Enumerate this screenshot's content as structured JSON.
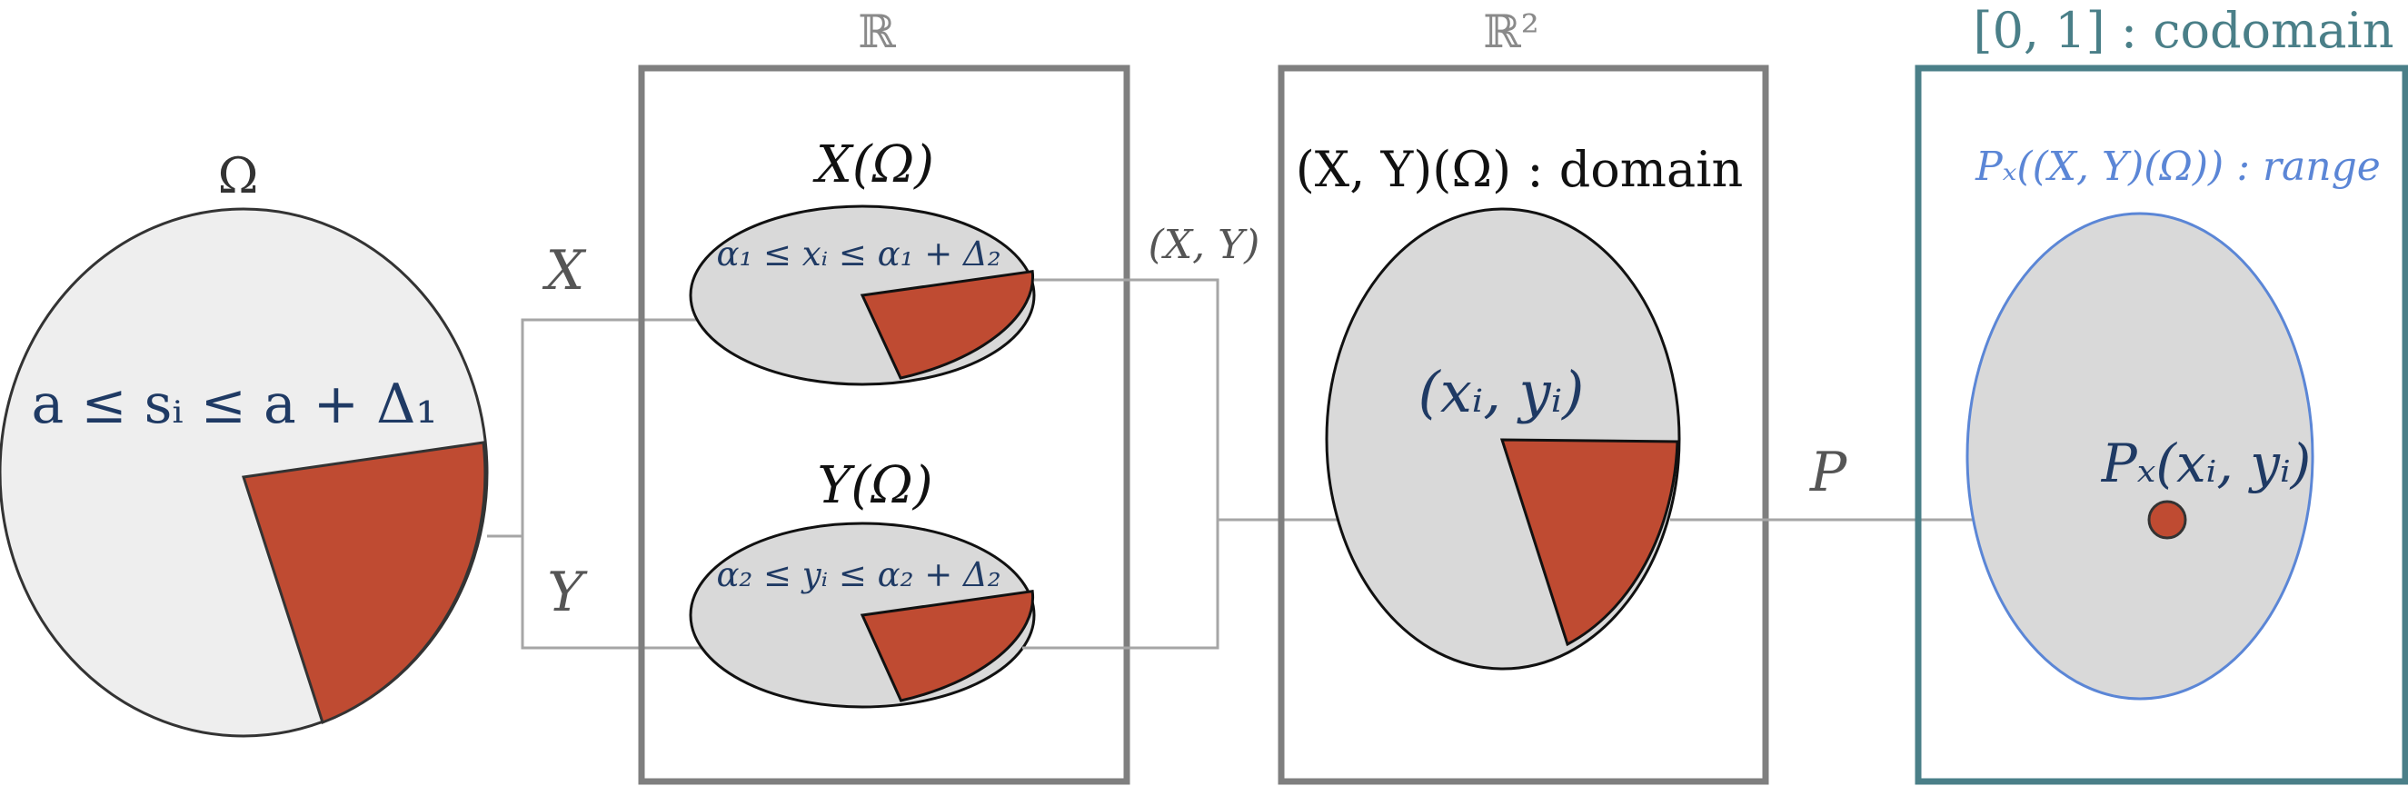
{
  "colors": {
    "accent": "#bf4b32",
    "ellipse_fill": "#d9d9d9",
    "omega_fill": "#eeeeee",
    "navy_text": "#1f3a64",
    "teal": "#4a7f88",
    "range_blue": "#5b86d6",
    "frame_gray": "#7f7f7f",
    "arrow_gray": "#a6a6a6"
  },
  "omega": {
    "label": "Ω",
    "interval": "a ≤ sᵢ ≤ a + Δ₁"
  },
  "arrows": {
    "x_label": "X",
    "y_label": "Y",
    "xy_label": "(X, Y)",
    "p_label": "P"
  },
  "box_r": {
    "title": "ℝ",
    "x_image_label": "X(Ω)",
    "x_interval": "α₁ ≤ xᵢ ≤ α₁ + Δ₂",
    "y_image_label": "Y(Ω)",
    "y_interval": "α₂ ≤ yᵢ ≤ α₂ + Δ₂"
  },
  "box_r2": {
    "title": "ℝ²",
    "domain_label": "(X, Y)(Ω) : domain",
    "point_label": "(xᵢ, yᵢ)"
  },
  "box_codomain": {
    "title": "[0, 1] : codomain",
    "range_label": "Pₓ((X, Y)(Ω)) : range",
    "point_label": "Pₓ(xᵢ, yᵢ)"
  }
}
